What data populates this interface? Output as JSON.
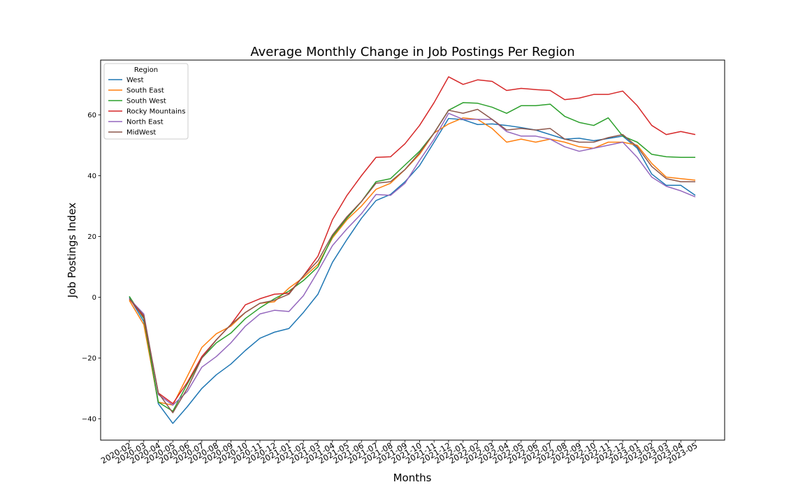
{
  "chart_data": {
    "type": "line",
    "title": "Average Monthly Change in Job Postings Per Region",
    "xlabel": "Months",
    "ylabel": "Job Postings Index",
    "ylim": [
      -47,
      78
    ],
    "yticks": [
      -40,
      -20,
      0,
      20,
      40,
      60
    ],
    "ytick_labels": [
      "−40",
      "−20",
      "0",
      "20",
      "40",
      "60"
    ],
    "grid": false,
    "legend": {
      "title": "Region",
      "placement": "top-left"
    },
    "categories": [
      "2020-02",
      "2020-03",
      "2020-04",
      "2020-05",
      "2020-06",
      "2020-07",
      "2020-08",
      "2020-09",
      "2020-10",
      "2020-11",
      "2020-12",
      "2021-01",
      "2021-02",
      "2021-03",
      "2021-04",
      "2021-05",
      "2021-06",
      "2021-07",
      "2021-08",
      "2021-09",
      "2021-10",
      "2021-11",
      "2021-12",
      "2022-01",
      "2022-02",
      "2022-03",
      "2022-04",
      "2022-05",
      "2022-06",
      "2022-07",
      "2022-08",
      "2022-09",
      "2022-10",
      "2022-11",
      "2022-12",
      "2023-01",
      "2023-02",
      "2023-03",
      "2023-04",
      "2023-05"
    ],
    "series": [
      {
        "name": "West",
        "color": "#1f77b4",
        "values": [
          0.0,
          -8.0,
          -35.0,
          -41.5,
          -36.0,
          -30.0,
          -25.5,
          -22.0,
          -17.5,
          -13.5,
          -11.5,
          -10.3,
          -5.0,
          1.0,
          11.5,
          19.0,
          26.0,
          31.8,
          33.8,
          38.0,
          43.3,
          51.0,
          58.8,
          58.4,
          56.8,
          57.0,
          56.5,
          55.8,
          55.0,
          53.5,
          52.0,
          52.3,
          51.5,
          52.2,
          53.0,
          49.0,
          40.5,
          36.8,
          36.8,
          33.5
        ]
      },
      {
        "name": "South East",
        "color": "#ff7f0e",
        "values": [
          -1.0,
          -9.0,
          -34.5,
          -35.5,
          -26.0,
          -16.5,
          -12.0,
          -9.5,
          -5.0,
          -2.0,
          -1.5,
          3.0,
          6.5,
          10.8,
          19.5,
          25.5,
          30.0,
          35.5,
          37.5,
          42.0,
          47.0,
          54.0,
          57.0,
          59.0,
          58.5,
          55.5,
          51.0,
          52.0,
          51.0,
          52.0,
          51.0,
          49.5,
          49.0,
          51.0,
          51.0,
          50.0,
          44.0,
          39.5,
          39.0,
          38.5
        ]
      },
      {
        "name": "South West",
        "color": "#2ca02c",
        "values": [
          0.3,
          -7.0,
          -34.5,
          -37.5,
          -28.5,
          -20.0,
          -15.0,
          -11.8,
          -7.0,
          -3.5,
          -0.5,
          2.0,
          5.5,
          10.0,
          20.0,
          26.0,
          31.5,
          38.0,
          39.0,
          43.5,
          48.0,
          54.0,
          61.5,
          64.0,
          63.8,
          62.5,
          60.5,
          63.0,
          63.0,
          63.5,
          59.5,
          57.5,
          56.5,
          59.0,
          53.0,
          51.0,
          47.0,
          46.2,
          46.0,
          46.0
        ]
      },
      {
        "name": "Rocky Mountains",
        "color": "#d62728",
        "values": [
          -0.5,
          -6.5,
          -31.5,
          -35.0,
          -28.0,
          -19.5,
          -14.0,
          -9.0,
          -2.5,
          -0.5,
          1.0,
          1.3,
          7.0,
          13.5,
          25.5,
          33.5,
          40.0,
          46.0,
          46.2,
          50.5,
          56.5,
          64.0,
          72.5,
          70.0,
          71.5,
          71.0,
          68.0,
          68.7,
          68.3,
          68.0,
          65.0,
          65.5,
          66.7,
          66.7,
          67.8,
          63.0,
          56.5,
          53.5,
          54.5,
          53.5
        ]
      },
      {
        "name": "North East",
        "color": "#9467bd",
        "values": [
          -0.5,
          -5.5,
          -32.0,
          -35.5,
          -31.0,
          -23.0,
          -19.5,
          -15.0,
          -9.5,
          -5.5,
          -4.3,
          -4.7,
          0.5,
          8.5,
          17.0,
          22.5,
          27.5,
          33.8,
          33.5,
          37.5,
          45.0,
          52.0,
          60.5,
          58.5,
          58.5,
          58.5,
          54.5,
          53.0,
          53.0,
          52.0,
          49.5,
          48.0,
          49.0,
          50.0,
          51.0,
          46.0,
          39.5,
          36.5,
          35.0,
          33.0
        ]
      },
      {
        "name": "MidWest",
        "color": "#8c564b",
        "values": [
          -0.5,
          -6.0,
          -31.5,
          -38.0,
          -30.0,
          -20.0,
          -14.0,
          -9.0,
          -5.0,
          -2.0,
          -1.0,
          1.0,
          7.0,
          12.0,
          20.5,
          26.5,
          31.5,
          37.5,
          38.0,
          42.0,
          47.5,
          54.0,
          61.5,
          60.5,
          61.8,
          58.5,
          55.0,
          55.5,
          55.0,
          55.5,
          52.0,
          51.0,
          51.0,
          52.5,
          53.5,
          49.5,
          43.0,
          39.0,
          38.0,
          38.0
        ]
      }
    ]
  }
}
